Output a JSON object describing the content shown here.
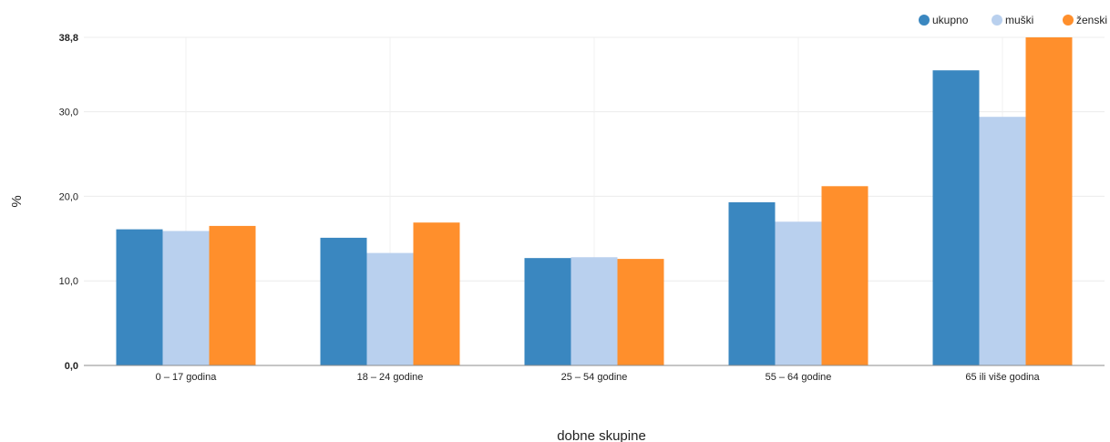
{
  "chart_data": {
    "type": "bar",
    "categories": [
      "0 – 17 godina",
      "18 – 24 godine",
      "25 – 54 godine",
      "55 – 64 godine",
      "65 ili više godina"
    ],
    "series": [
      {
        "name": "ukupno",
        "color": "#3a87c0",
        "values": [
          16.1,
          15.1,
          12.7,
          19.3,
          34.9
        ]
      },
      {
        "name": "muški",
        "color": "#b9d0ee",
        "values": [
          15.9,
          13.3,
          12.8,
          17.0,
          29.4
        ]
      },
      {
        "name": "ženski",
        "color": "#ff8f2c",
        "values": [
          16.5,
          16.9,
          12.6,
          21.2,
          38.8
        ]
      }
    ],
    "ylim": [
      0,
      38.8
    ],
    "yticks": [
      {
        "value": 0,
        "label": "0,0",
        "bold": true
      },
      {
        "value": 10,
        "label": "10,0",
        "bold": false
      },
      {
        "value": 20,
        "label": "20,0",
        "bold": false
      },
      {
        "value": 30,
        "label": "30,0",
        "bold": false
      },
      {
        "value": 38.8,
        "label": "38,8",
        "bold": true
      }
    ],
    "xlabel": "dobne skupine",
    "ylabel": "%",
    "grid": true,
    "legend_position": "top-right"
  }
}
